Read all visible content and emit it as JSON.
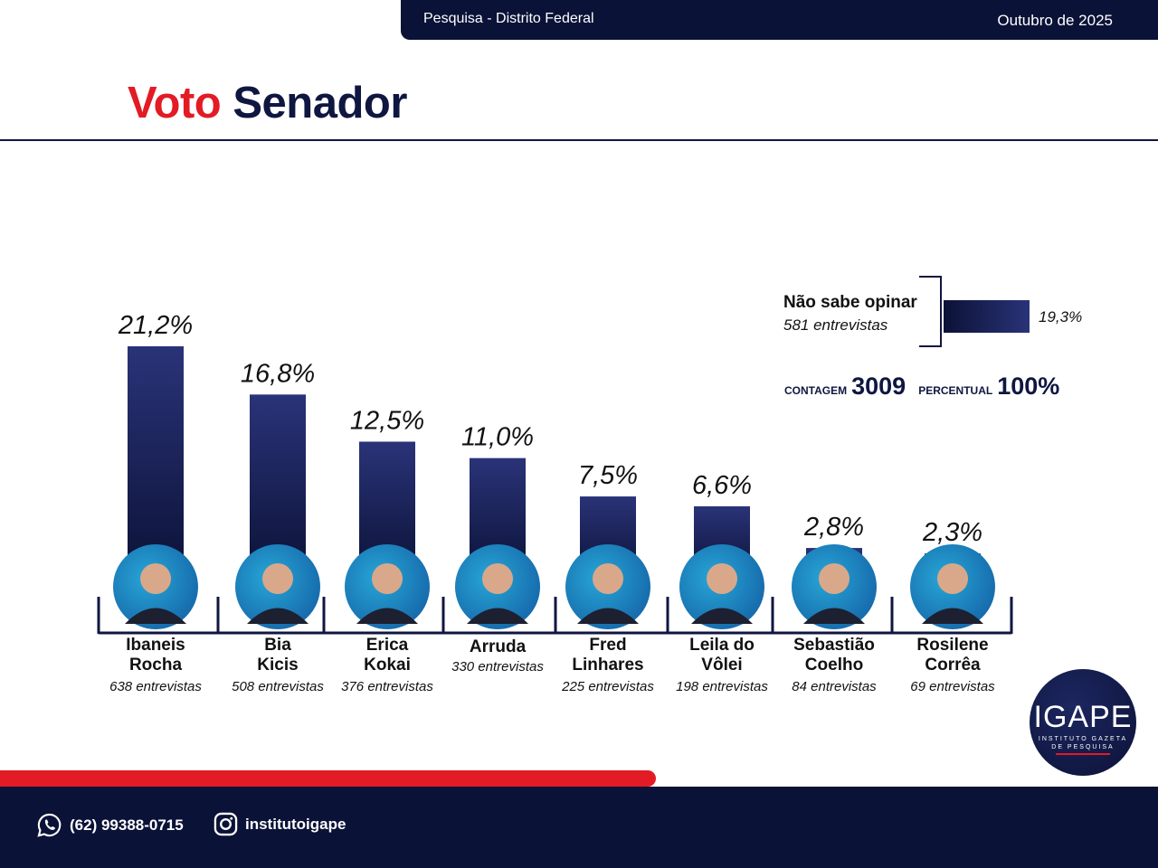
{
  "header": {
    "survey": "Pesquisa - Distrito Federal",
    "date": "Outubro de 2025"
  },
  "title": {
    "part1": "Voto",
    "part2": "Senador"
  },
  "colors": {
    "navy": "#0f1640",
    "red": "#e21b24",
    "bar_top": "#2a3378",
    "bar_bottom": "#0b1237",
    "photo_bg": "#1a8fc4"
  },
  "chart_data": {
    "type": "bar",
    "title": "Voto Senador",
    "xlabel": "",
    "ylabel": "",
    "ylim": [
      0,
      22
    ],
    "grid": false,
    "categories": [
      "Ibaneis Rocha",
      "Bia Kicis",
      "Erica Kokai",
      "Arruda",
      "Fred Linhares",
      "Leila do Vôlei",
      "Sebastião Coelho",
      "Rosilene Corrêa"
    ],
    "values": [
      21.2,
      16.8,
      12.5,
      11.0,
      7.5,
      6.6,
      2.8,
      2.3
    ],
    "value_labels": [
      "21,2%",
      "16,8%",
      "12,5%",
      "11,0%",
      "7,5%",
      "6,6%",
      "2,8%",
      "2,3%"
    ],
    "name_lines": [
      [
        "Ibaneis",
        "Rocha"
      ],
      [
        "Bia",
        "Kicis"
      ],
      [
        "Erica",
        "Kokai"
      ],
      [
        "Arruda"
      ],
      [
        "Fred",
        "Linhares"
      ],
      [
        "Leila do",
        "Vôlei"
      ],
      [
        "Sebastião",
        "Coelho"
      ],
      [
        "Rosilene",
        "Corrêa"
      ]
    ],
    "interviews": [
      "638 entrevistas",
      "508 entrevistas",
      "376 entrevistas",
      "330 entrevistas",
      "225 entrevistas",
      "198 entrevistas",
      "84 entrevistas",
      "69 entrevistas"
    ],
    "dont_know": {
      "label": "Não sabe opinar",
      "interviews": "581 entrevistas",
      "value": 19.3,
      "value_label": "19,3%"
    }
  },
  "totals": {
    "count_label": "CONTAGEM",
    "count": "3009",
    "percent_label": "PERCENTUAL",
    "percent": "100%"
  },
  "footer": {
    "whatsapp": "(62) 99388-0715",
    "instagram": "institutoigape"
  },
  "logo": {
    "name": "IGAPE",
    "line1": "INSTITUTO GAZETA",
    "line2": "DE PESQUISA"
  }
}
